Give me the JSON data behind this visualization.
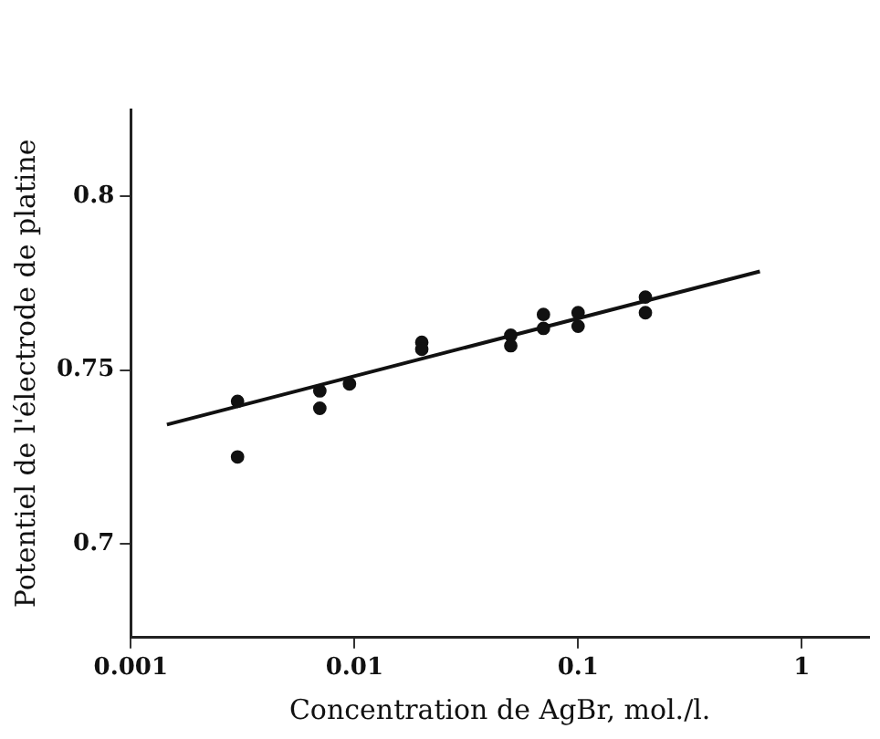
{
  "chart_data": {
    "type": "scatter",
    "xlabel": "Concentration de AgBr, mol./l.",
    "ylabel": "Potentiel de l'électrode de platine",
    "log": "x",
    "xlim": [
      0.001,
      2
    ],
    "xticks": [
      {
        "value": 0.001,
        "label": "0.001"
      },
      {
        "value": 0.01,
        "label": "0.01"
      },
      {
        "value": 0.1,
        "label": "0.1"
      },
      1
    ],
    "ylim": [
      0.673,
      0.825
    ],
    "yticks": [
      0.7,
      0.75,
      0.8
    ],
    "grid": false,
    "legend": false,
    "marker": "circle",
    "series": [
      {
        "color": "#111111",
        "x": [
          0.003,
          0.003,
          0.007,
          0.007,
          0.0095,
          0.02,
          0.02,
          0.05,
          0.05,
          0.07,
          0.07,
          0.1,
          0.1,
          0.2,
          0.2
        ],
        "values": [
          0.741,
          0.725,
          0.744,
          0.739,
          0.746,
          0.758,
          0.756,
          0.76,
          0.757,
          0.766,
          0.762,
          0.7665,
          0.7626,
          0.771,
          0.7665
        ]
      },
      {
        "type": "line",
        "marker": "none",
        "color": "#111111",
        "x": [
          0.00145,
          0.65
        ],
        "values": [
          0.7343,
          0.7784
        ]
      }
    ]
  }
}
